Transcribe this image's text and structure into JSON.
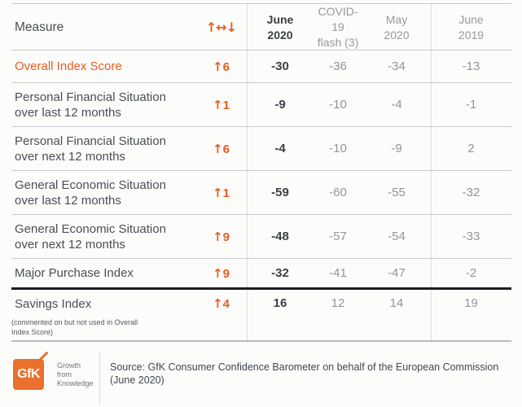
{
  "accent_color": "#E85C20",
  "logo_color": "#E9702D",
  "table": {
    "header": {
      "measure_label": "Measure",
      "change_label": "↑↔↓",
      "columns": [
        "June\n2020",
        "COVID-19\nflash (3)",
        "May\n2020",
        "June\n2019"
      ]
    },
    "rows": [
      {
        "measure": "Overall Index Score",
        "arrow": "↑",
        "change": "6",
        "values": [
          "-30",
          "-36",
          "-34",
          "-13"
        ]
      },
      {
        "measure": "Personal Financial Situation\nover last 12 months",
        "arrow": "↑",
        "change": "1",
        "values": [
          "-9",
          "-10",
          "-4",
          "-1"
        ]
      },
      {
        "measure": "Personal Financial Situation\nover next 12 months",
        "arrow": "↑",
        "change": "6",
        "values": [
          "-4",
          "-10",
          "-9",
          "2"
        ]
      },
      {
        "measure": "General Economic Situation\nover last 12 months",
        "arrow": "↑",
        "change": "1",
        "values": [
          "-59",
          "-60",
          "-55",
          "-32"
        ]
      },
      {
        "measure": "General Economic Situation\nover next 12 months",
        "arrow": "↑",
        "change": "9",
        "values": [
          "-48",
          "-57",
          "-54",
          "-33"
        ]
      },
      {
        "measure": "Major Purchase Index",
        "arrow": "↑",
        "change": "9",
        "values": [
          "-32",
          "-41",
          "-47",
          "-2"
        ]
      },
      {
        "measure": "Savings Index",
        "note": "(commented on but not used in Overall\nIndex Score)",
        "arrow": "↑",
        "change": "4",
        "values": [
          "16",
          "12",
          "14",
          "19"
        ]
      }
    ]
  },
  "footer": {
    "logo_text": "GfK",
    "logo_tagline": "Growth\nfrom\nKnowledge",
    "source": "Source: GfK Consumer Confidence Barometer on behalf of the European Commission\n(June 2020)"
  },
  "chart_data": {
    "type": "table",
    "title": "GfK Consumer Confidence Barometer (June 2020)",
    "columns": [
      "Measure",
      "↑↔↓",
      "June 2020",
      "COVID-19 flash (3)",
      "May 2020",
      "June 2019"
    ],
    "rows": [
      [
        "Overall Index Score",
        "↑6",
        -30,
        -36,
        -34,
        -13
      ],
      [
        "Personal Financial Situation over last 12 months",
        "↑1",
        -9,
        -10,
        -4,
        -1
      ],
      [
        "Personal Financial Situation over next 12 months",
        "↑6",
        -4,
        -10,
        -9,
        2
      ],
      [
        "General Economic Situation over last 12 months",
        "↑1",
        -59,
        -60,
        -55,
        -32
      ],
      [
        "General Economic Situation over next 12 months",
        "↑9",
        -48,
        -57,
        -54,
        -33
      ],
      [
        "Major Purchase Index",
        "↑9",
        -32,
        -41,
        -47,
        -2
      ],
      [
        "Savings Index (commented on but not used in Overall Index Score)",
        "↑4",
        16,
        12,
        14,
        19
      ]
    ],
    "notes": "June 2020 column emphasized (bold); Savings Index separated by thick rule"
  }
}
